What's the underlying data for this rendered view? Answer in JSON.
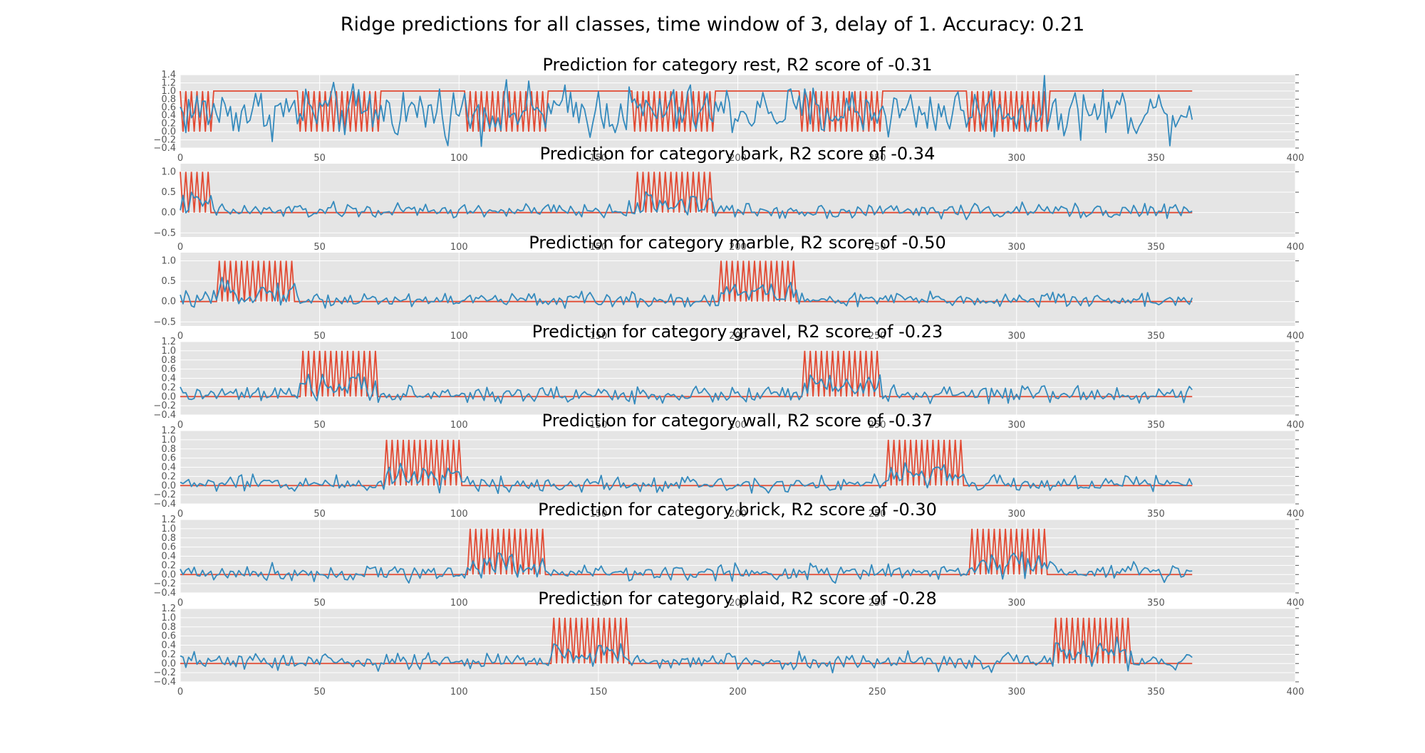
{
  "figure": {
    "suptitle": "Ridge predictions for all classes, time window of 3, delay of 1. Accuracy: 0.21"
  },
  "colors": {
    "actual": "#E24A33",
    "predicted": "#348ABD",
    "panel_bg": "#e5e5e5",
    "grid": "#ffffff"
  },
  "chart_data": [
    {
      "type": "line",
      "title": "Prediction for category rest, R2 score of -0.31",
      "category": "rest",
      "r2": -0.31,
      "xlim": [
        0,
        400
      ],
      "ylim": [
        -0.4,
        1.4
      ],
      "xticks": [
        0,
        50,
        100,
        150,
        200,
        250,
        300,
        350,
        400
      ],
      "yticks": [
        -0.4,
        -0.2,
        0.0,
        0.2,
        0.4,
        0.6,
        0.8,
        1.0,
        1.2,
        1.4
      ],
      "ytick_labels": [
        "−0.4",
        "−0.2",
        "0.0",
        "0.2",
        "0.4",
        "0.6",
        "0.8",
        "1.0",
        "1.2",
        "1.4"
      ],
      "n_points": 364,
      "actual_blocks": [
        [
          0,
          11
        ],
        [
          42,
          71
        ],
        [
          102,
          131
        ],
        [
          162,
          191
        ],
        [
          222,
          251
        ],
        [
          282,
          311
        ],
        [
          342,
          363
        ]
      ],
      "actual_pattern": "inside blocks: alternating 1,0 every sample; outside blocks: 1",
      "predicted_summary": "noisy values mostly between 0.0 and 1.0, peaks up to about 1.35",
      "grid": true
    },
    {
      "type": "line",
      "title": "Prediction for category bark, R2 score of -0.34",
      "category": "bark",
      "r2": -0.34,
      "xlim": [
        0,
        400
      ],
      "ylim": [
        -0.6,
        1.2
      ],
      "xticks": [
        0,
        50,
        100,
        150,
        200,
        250,
        300,
        350,
        400
      ],
      "yticks": [
        -0.5,
        0.0,
        0.5,
        1.0
      ],
      "ytick_labels": [
        "−0.5",
        "0.0",
        "0.5",
        "1.0"
      ],
      "n_points": 364,
      "actual_blocks": [
        [
          0,
          11
        ],
        [
          164,
          191
        ]
      ],
      "actual_pattern": "inside blocks: alternating 1,0 every sample; outside blocks: 0",
      "predicted_summary": "noisy values around 0.0 to 0.4 with rises inside active blocks",
      "grid": true
    },
    {
      "type": "line",
      "title": "Prediction for category marble, R2 score of -0.50",
      "category": "marble",
      "r2": -0.5,
      "xlim": [
        0,
        400
      ],
      "ylim": [
        -0.6,
        1.2
      ],
      "xticks": [
        0,
        50,
        100,
        150,
        200,
        250,
        300,
        350,
        400
      ],
      "yticks": [
        -0.5,
        0.0,
        0.5,
        1.0
      ],
      "ytick_labels": [
        "−0.5",
        "0.0",
        "0.5",
        "1.0"
      ],
      "n_points": 364,
      "actual_blocks": [
        [
          14,
          41
        ],
        [
          194,
          221
        ]
      ],
      "actual_pattern": "inside blocks: alternating 1,0 every sample; outside blocks: 0",
      "predicted_summary": "noisy values around 0.0 to 0.4 with rises inside active blocks",
      "grid": true
    },
    {
      "type": "line",
      "title": "Prediction for category gravel, R2 score of -0.23",
      "category": "gravel",
      "r2": -0.23,
      "xlim": [
        0,
        400
      ],
      "ylim": [
        -0.4,
        1.2
      ],
      "xticks": [
        0,
        50,
        100,
        150,
        200,
        250,
        300,
        350,
        400
      ],
      "yticks": [
        -0.4,
        -0.2,
        0.0,
        0.2,
        0.4,
        0.6,
        0.8,
        1.0,
        1.2
      ],
      "ytick_labels": [
        "−0.4",
        "−0.2",
        "0.0",
        "0.2",
        "0.4",
        "0.6",
        "0.8",
        "1.0",
        "1.2"
      ],
      "n_points": 364,
      "actual_blocks": [
        [
          44,
          71
        ],
        [
          224,
          251
        ]
      ],
      "actual_pattern": "inside blocks: alternating 1,0 every sample; outside blocks: 0",
      "predicted_summary": "noisy values around 0.0 to 0.3 with rises inside active blocks",
      "grid": true
    },
    {
      "type": "line",
      "title": "Prediction for category wall, R2 score of -0.37",
      "category": "wall",
      "r2": -0.37,
      "xlim": [
        0,
        400
      ],
      "ylim": [
        -0.4,
        1.2
      ],
      "xticks": [
        0,
        50,
        100,
        150,
        200,
        250,
        300,
        350,
        400
      ],
      "yticks": [
        -0.4,
        -0.2,
        0.0,
        0.2,
        0.4,
        0.6,
        0.8,
        1.0,
        1.2
      ],
      "ytick_labels": [
        "−0.4",
        "−0.2",
        "0.0",
        "0.2",
        "0.4",
        "0.6",
        "0.8",
        "1.0",
        "1.2"
      ],
      "n_points": 364,
      "actual_blocks": [
        [
          74,
          101
        ],
        [
          254,
          281
        ]
      ],
      "actual_pattern": "inside blocks: alternating 1,0 every sample; outside blocks: 0",
      "predicted_summary": "noisy values around 0.0 to 0.3 with rises inside active blocks",
      "grid": true
    },
    {
      "type": "line",
      "title": "Prediction for category brick, R2 score of -0.30",
      "category": "brick",
      "r2": -0.3,
      "xlim": [
        0,
        400
      ],
      "ylim": [
        -0.4,
        1.2
      ],
      "xticks": [
        0,
        50,
        100,
        150,
        200,
        250,
        300,
        350,
        400
      ],
      "yticks": [
        -0.4,
        -0.2,
        0.0,
        0.2,
        0.4,
        0.6,
        0.8,
        1.0,
        1.2
      ],
      "ytick_labels": [
        "−0.4",
        "−0.2",
        "0.0",
        "0.2",
        "0.4",
        "0.6",
        "0.8",
        "1.0",
        "1.2"
      ],
      "n_points": 364,
      "actual_blocks": [
        [
          104,
          131
        ],
        [
          284,
          311
        ]
      ],
      "actual_pattern": "inside blocks: alternating 1,0 every sample; outside blocks: 0",
      "predicted_summary": "noisy values around 0.0 to 0.3 with rises inside active blocks",
      "grid": true
    },
    {
      "type": "line",
      "title": "Prediction for category plaid, R2 score of -0.28",
      "category": "plaid",
      "r2": -0.28,
      "xlim": [
        0,
        400
      ],
      "ylim": [
        -0.4,
        1.2
      ],
      "xticks": [
        0,
        50,
        100,
        150,
        200,
        250,
        300,
        350,
        400
      ],
      "yticks": [
        -0.4,
        -0.2,
        0.0,
        0.2,
        0.4,
        0.6,
        0.8,
        1.0,
        1.2
      ],
      "ytick_labels": [
        "−0.4",
        "−0.2",
        "0.0",
        "0.2",
        "0.4",
        "0.6",
        "0.8",
        "1.0",
        "1.2"
      ],
      "n_points": 364,
      "actual_blocks": [
        [
          134,
          161
        ],
        [
          314,
          341
        ]
      ],
      "actual_pattern": "inside blocks: alternating 1,0 every sample; outside blocks: 0",
      "predicted_summary": "noisy values around 0.0 to 0.3 with rises inside active blocks",
      "grid": true
    }
  ]
}
